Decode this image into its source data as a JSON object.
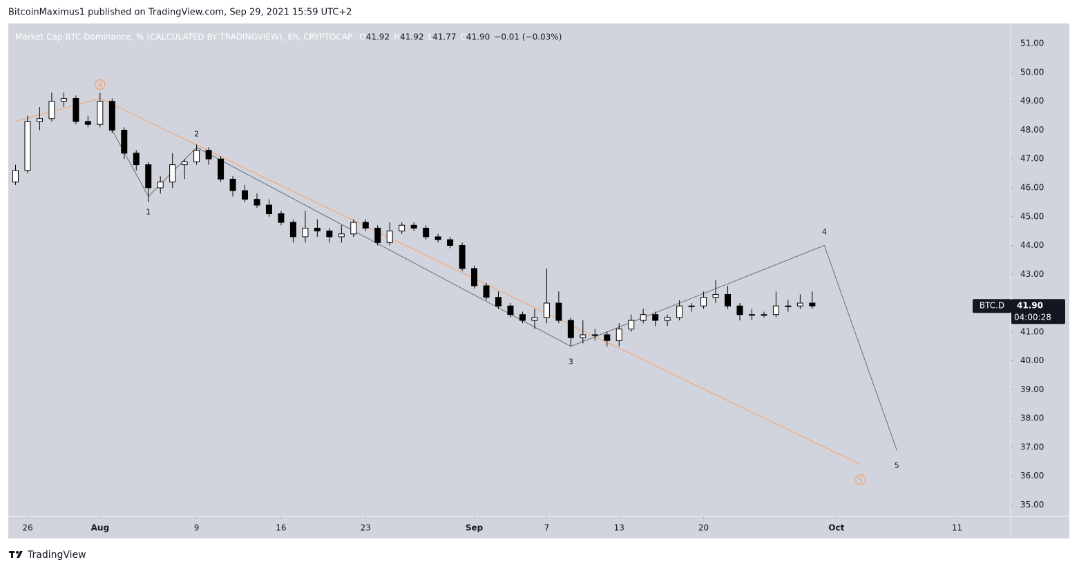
{
  "header": "BitcoinMaximus1 published on TradingView.com, Sep 29, 2021 15:59 UTC+2",
  "footer": "TradingView",
  "chart_data": {
    "type": "candlestick",
    "legend": {
      "title": "Market Cap BTC Dominance, % (CALCULATED BY TRADINGVIEW), 6h, CRYPTOCAP",
      "ohlc": [
        {
          "key": "O",
          "value": 41.92,
          "label": "41.92"
        },
        {
          "key": "H",
          "value": 41.92,
          "label": "41.92"
        },
        {
          "key": "L",
          "value": 41.77,
          "label": "41.77"
        },
        {
          "key": "C",
          "value": 41.9,
          "label": "41.90"
        }
      ],
      "change": "−0.01 (−0.03%)"
    },
    "x": [
      "Jul 25",
      "Jul 26",
      "Jul 27",
      "Jul 28",
      "Jul 29",
      "Jul 30",
      "Jul 31",
      "Aug 1",
      "Aug 2",
      "Aug 3",
      "Aug 4",
      "Aug 5",
      "Aug 6",
      "Aug 7",
      "Aug 8",
      "Aug 9",
      "Aug 10",
      "Aug 11",
      "Aug 12",
      "Aug 13",
      "Aug 14",
      "Aug 15",
      "Aug 16",
      "Aug 17",
      "Aug 18",
      "Aug 19",
      "Aug 20",
      "Aug 21",
      "Aug 22",
      "Aug 23",
      "Aug 24",
      "Aug 25",
      "Aug 26",
      "Aug 27",
      "Aug 28",
      "Aug 29",
      "Aug 30",
      "Aug 31",
      "Sep 1",
      "Sep 2",
      "Sep 3",
      "Sep 4",
      "Sep 5",
      "Sep 6",
      "Sep 7",
      "Sep 8",
      "Sep 9",
      "Sep 10",
      "Sep 11",
      "Sep 12",
      "Sep 13",
      "Sep 14",
      "Sep 15",
      "Sep 16",
      "Sep 17",
      "Sep 18",
      "Sep 19",
      "Sep 20",
      "Sep 21",
      "Sep 22",
      "Sep 23",
      "Sep 24",
      "Sep 25",
      "Sep 26",
      "Sep 27",
      "Sep 28",
      "Sep 29",
      "Sep 30",
      "Oct 1",
      "Oct 2",
      "Oct 3",
      "Oct 4",
      "Oct 5",
      "Oct 6",
      "Oct 7",
      "Oct 8",
      "Oct 9",
      "Oct 10",
      "Oct 11",
      "Oct 12",
      "Oct 13",
      "Oct 14",
      "Oct 15"
    ],
    "candles": [
      [
        46.2,
        46.8,
        46.1,
        46.6
      ],
      [
        46.6,
        48.5,
        46.5,
        48.3
      ],
      [
        48.3,
        48.8,
        48.0,
        48.4
      ],
      [
        48.4,
        49.3,
        48.3,
        49.0
      ],
      [
        49.0,
        49.3,
        48.8,
        49.1
      ],
      [
        49.1,
        49.2,
        48.2,
        48.3
      ],
      [
        48.3,
        48.5,
        48.1,
        48.2
      ],
      [
        48.2,
        49.3,
        48.1,
        49.0
      ],
      [
        49.0,
        49.1,
        47.9,
        48.0
      ],
      [
        48.0,
        48.1,
        47.0,
        47.2
      ],
      [
        47.2,
        47.3,
        46.6,
        46.8
      ],
      [
        46.8,
        46.9,
        45.5,
        46.0
      ],
      [
        46.0,
        46.4,
        45.8,
        46.2
      ],
      [
        46.2,
        47.2,
        46.0,
        46.8
      ],
      [
        46.8,
        47.0,
        46.3,
        46.9
      ],
      [
        46.9,
        47.5,
        46.8,
        47.3
      ],
      [
        47.3,
        47.4,
        46.8,
        47.0
      ],
      [
        47.0,
        47.1,
        46.2,
        46.3
      ],
      [
        46.3,
        46.4,
        45.7,
        45.9
      ],
      [
        45.9,
        46.1,
        45.5,
        45.6
      ],
      [
        45.6,
        45.8,
        45.3,
        45.4
      ],
      [
        45.4,
        45.6,
        45.0,
        45.1
      ],
      [
        45.1,
        45.2,
        44.7,
        44.8
      ],
      [
        44.8,
        44.9,
        44.1,
        44.3
      ],
      [
        44.3,
        45.2,
        44.1,
        44.6
      ],
      [
        44.6,
        44.9,
        44.3,
        44.5
      ],
      [
        44.5,
        44.6,
        44.1,
        44.3
      ],
      [
        44.3,
        44.7,
        44.1,
        44.4
      ],
      [
        44.4,
        44.9,
        44.3,
        44.8
      ],
      [
        44.8,
        44.9,
        44.5,
        44.6
      ],
      [
        44.6,
        44.7,
        44.0,
        44.1
      ],
      [
        44.1,
        44.8,
        44.0,
        44.5
      ],
      [
        44.5,
        44.8,
        44.4,
        44.7
      ],
      [
        44.7,
        44.8,
        44.5,
        44.6
      ],
      [
        44.6,
        44.7,
        44.2,
        44.3
      ],
      [
        44.3,
        44.4,
        44.1,
        44.2
      ],
      [
        44.2,
        44.3,
        43.9,
        44.0
      ],
      [
        44.0,
        44.1,
        43.1,
        43.2
      ],
      [
        43.2,
        43.3,
        42.5,
        42.6
      ],
      [
        42.6,
        42.7,
        42.1,
        42.2
      ],
      [
        42.2,
        42.4,
        41.8,
        41.9
      ],
      [
        41.9,
        42.0,
        41.5,
        41.6
      ],
      [
        41.6,
        41.7,
        41.3,
        41.4
      ],
      [
        41.4,
        41.8,
        41.1,
        41.5
      ],
      [
        41.5,
        43.2,
        41.3,
        42.0
      ],
      [
        42.0,
        42.4,
        41.3,
        41.4
      ],
      [
        41.4,
        41.5,
        40.5,
        40.8
      ],
      [
        40.8,
        41.4,
        40.6,
        40.9
      ],
      [
        40.9,
        41.1,
        40.7,
        40.9
      ],
      [
        40.9,
        41.0,
        40.5,
        40.7
      ],
      [
        40.7,
        41.3,
        40.5,
        41.1
      ],
      [
        41.1,
        41.6,
        41.0,
        41.4
      ],
      [
        41.4,
        41.8,
        41.3,
        41.6
      ],
      [
        41.6,
        41.7,
        41.2,
        41.4
      ],
      [
        41.4,
        41.6,
        41.2,
        41.5
      ],
      [
        41.5,
        42.1,
        41.4,
        41.9
      ],
      [
        41.9,
        42.0,
        41.7,
        41.9
      ],
      [
        41.9,
        42.4,
        41.8,
        42.2
      ],
      [
        42.2,
        42.8,
        42.0,
        42.3
      ],
      [
        42.3,
        42.6,
        41.8,
        41.9
      ],
      [
        41.9,
        42.0,
        41.4,
        41.6
      ],
      [
        41.6,
        41.8,
        41.4,
        41.6
      ],
      [
        41.6,
        41.7,
        41.5,
        41.6
      ],
      [
        41.6,
        42.4,
        41.5,
        41.9
      ],
      [
        41.9,
        42.1,
        41.7,
        41.9
      ],
      [
        41.9,
        42.3,
        41.8,
        42.0
      ],
      [
        42.0,
        42.4,
        41.8,
        41.9
      ],
      null,
      null,
      null,
      null,
      null,
      null,
      null,
      null,
      null,
      null,
      null,
      null,
      null,
      null,
      null,
      null
    ],
    "up_color": "#ffffff",
    "down_color": "#000000",
    "ylim": [
      34.6,
      51.7
    ],
    "yticks": [
      {
        "value": 35,
        "label": "35.00"
      },
      {
        "value": 36,
        "label": "36.00"
      },
      {
        "value": 37,
        "label": "37.00"
      },
      {
        "value": 38,
        "label": "38.00"
      },
      {
        "value": 39,
        "label": "39.00"
      },
      {
        "value": 40,
        "label": "40.00"
      },
      {
        "value": 41,
        "label": "41.00"
      },
      {
        "value": 42,
        "label": "42.00"
      },
      {
        "value": 43,
        "label": "43.00"
      },
      {
        "value": 44,
        "label": "44.00"
      },
      {
        "value": 45,
        "label": "45.00"
      },
      {
        "value": 46,
        "label": "46.00"
      },
      {
        "value": 47,
        "label": "47.00"
      },
      {
        "value": 48,
        "label": "48.00"
      },
      {
        "value": 49,
        "label": "49.00"
      },
      {
        "value": 50,
        "label": "50.00"
      },
      {
        "value": 51,
        "label": "51.00"
      }
    ],
    "xticks": [
      {
        "value": "Jul 26",
        "label": "26"
      },
      {
        "value": "Aug 1",
        "label": "Aug"
      },
      {
        "value": "Aug 9",
        "label": "9"
      },
      {
        "value": "Aug 16",
        "label": "16"
      },
      {
        "value": "Aug 23",
        "label": "23"
      },
      {
        "value": "Sep 1",
        "label": "Sep"
      },
      {
        "value": "Sep 7",
        "label": "7"
      },
      {
        "value": "Sep 13",
        "label": "13"
      },
      {
        "value": "Sep 20",
        "label": "20"
      },
      {
        "value": "Oct 1",
        "label": "Oct"
      },
      {
        "value": "Oct 11",
        "label": "11"
      }
    ],
    "wave_lines": [
      {
        "color": "#f7a26b",
        "circled": true,
        "x": [
          "Jul 25",
          "Aug 1",
          "Oct 3"
        ],
        "y": [
          48.3,
          49.1,
          36.4
        ],
        "labels": [
          null,
          "4",
          "5"
        ]
      },
      {
        "color": "#6a6d78",
        "circled": false,
        "x": [
          "Aug 2",
          "Aug 5",
          "Aug 9",
          "Sep 9",
          "Sep 30",
          "Oct 6"
        ],
        "y": [
          48.0,
          45.7,
          47.4,
          40.5,
          44.0,
          36.9
        ],
        "labels": [
          null,
          "1",
          "2",
          "3",
          "4",
          "5"
        ]
      }
    ],
    "last_price": {
      "symbol": "BTC.D",
      "value": 41.9,
      "label": "41.90",
      "countdown": "04:00:28"
    }
  }
}
